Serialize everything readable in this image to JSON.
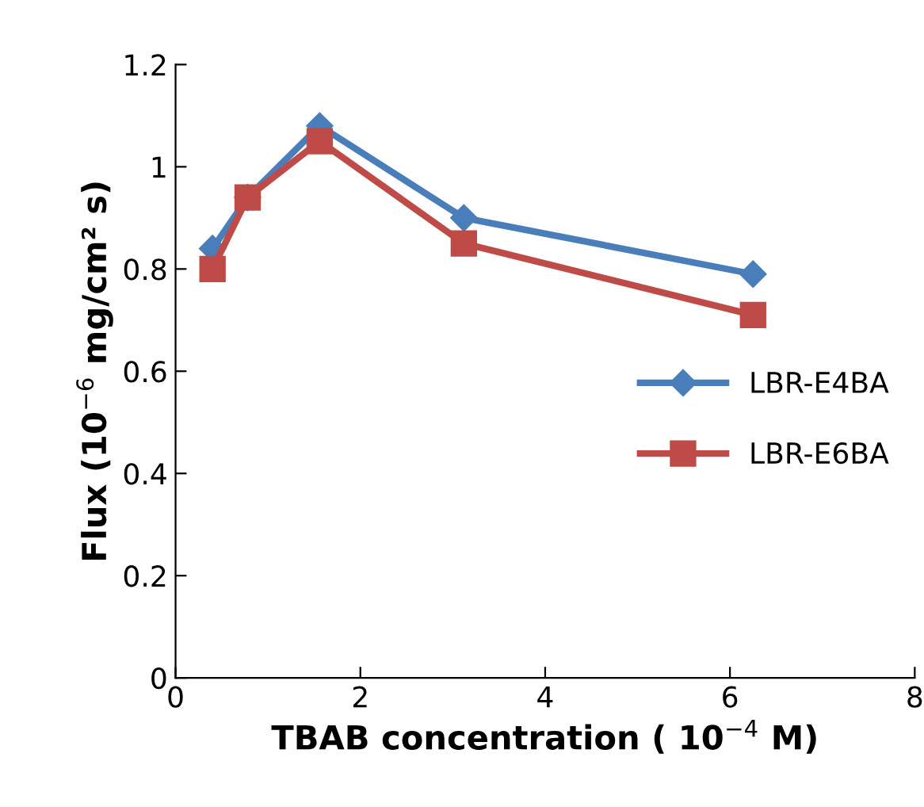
{
  "chart_data": {
    "type": "line",
    "xlabel": "TBAB concentration ( 10$^{−4}$ M)",
    "ylabel": "Flux (10$^{−6}$ mg/cm² s)",
    "xlim": [
      0,
      8
    ],
    "xticks": [
      0,
      2,
      4,
      6,
      8
    ],
    "ylim": [
      0,
      1.2
    ],
    "yticks": [
      0,
      0.2,
      0.4,
      0.6,
      0.8,
      1,
      1.2
    ],
    "grid": false,
    "legend": "right",
    "series": [
      {
        "name": "LBR-E4BA",
        "color": "#4a7ebb",
        "marker": "diamond",
        "x": [
          0.4,
          0.78,
          1.56,
          3.12,
          6.25
        ],
        "values": [
          0.84,
          0.94,
          1.08,
          0.9,
          0.79
        ]
      },
      {
        "name": "LBR-E6BA",
        "color": "#be4b48",
        "marker": "square",
        "x": [
          0.4,
          0.78,
          1.56,
          3.12,
          6.25
        ],
        "values": [
          0.8,
          0.94,
          1.05,
          0.85,
          0.71
        ]
      }
    ]
  }
}
